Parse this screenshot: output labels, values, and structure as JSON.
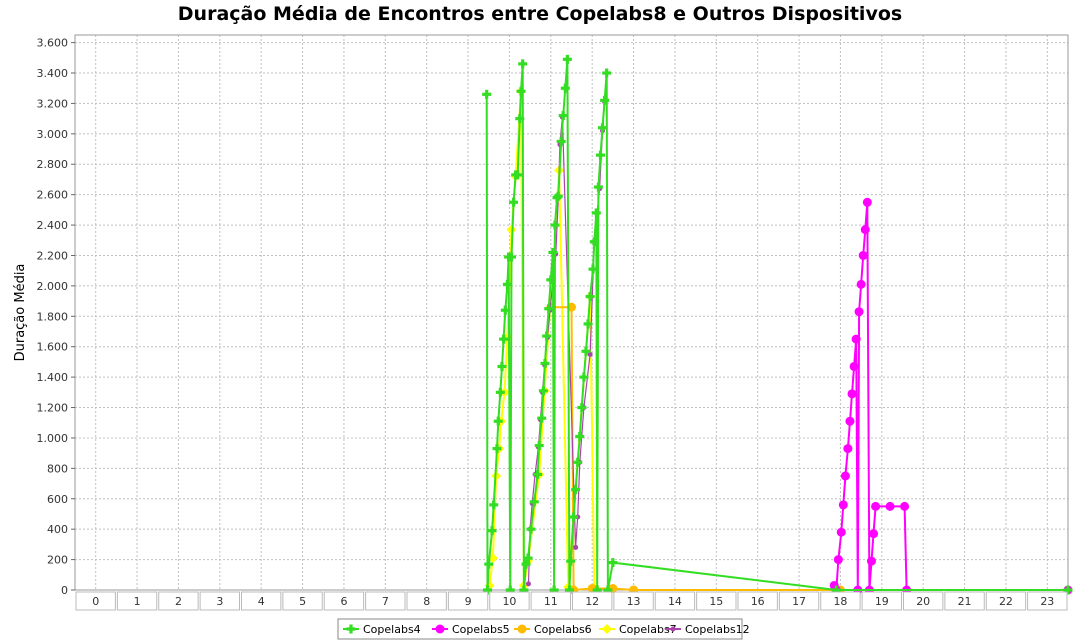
{
  "chart_data": {
    "type": "line",
    "title": "Duração Média de Encontros entre Copelabs8 e Outros Dispositivos",
    "xlabel": "",
    "ylabel": "Duração Média",
    "categories": [
      "0",
      "1",
      "2",
      "3",
      "4",
      "5",
      "6",
      "7",
      "8",
      "9",
      "10",
      "11",
      "12",
      "13",
      "14",
      "15",
      "16",
      "17",
      "18",
      "19",
      "20",
      "21",
      "22",
      "23"
    ],
    "xlim": [
      -0.5,
      23.5
    ],
    "ylim": [
      0,
      3650
    ],
    "y_ticks": [
      0,
      200,
      400,
      600,
      800,
      1000,
      1200,
      1400,
      1600,
      1800,
      2000,
      2200,
      2400,
      2600,
      2800,
      3000,
      3200,
      3400,
      3600
    ],
    "y_tick_labels": [
      "0",
      "200",
      "400",
      "600",
      "800",
      "1.000",
      "1.200",
      "1.400",
      "1.600",
      "1.800",
      "2.000",
      "2.200",
      "2.400",
      "2.600",
      "2.800",
      "3.000",
      "3.200",
      "3.400",
      "3.600"
    ],
    "grid": true,
    "legend_position": "bottom",
    "series": [
      {
        "name": "Copelabs4",
        "color": "#33dd22",
        "marker": "cross",
        "points": [
          [
            9.45,
            3260
          ],
          [
            9.47,
            0
          ],
          [
            9.5,
            170
          ],
          [
            9.58,
            390
          ],
          [
            9.62,
            560
          ],
          [
            9.7,
            930
          ],
          [
            9.73,
            1110
          ],
          [
            9.78,
            1300
          ],
          [
            9.82,
            1470
          ],
          [
            9.86,
            1650
          ],
          [
            9.9,
            1840
          ],
          [
            9.95,
            2010
          ],
          [
            9.98,
            2190
          ],
          [
            10.02,
            0
          ],
          [
            10.05,
            2190
          ],
          [
            10.1,
            2550
          ],
          [
            10.15,
            2730
          ],
          [
            10.2,
            2730
          ],
          [
            10.25,
            3100
          ],
          [
            10.28,
            3280
          ],
          [
            10.32,
            3460
          ],
          [
            10.35,
            0
          ],
          [
            10.4,
            170
          ],
          [
            10.45,
            210
          ],
          [
            10.52,
            400
          ],
          [
            10.6,
            580
          ],
          [
            10.68,
            760
          ],
          [
            10.72,
            950
          ],
          [
            10.78,
            1130
          ],
          [
            10.82,
            1310
          ],
          [
            10.86,
            1490
          ],
          [
            10.9,
            1670
          ],
          [
            10.95,
            1850
          ],
          [
            11.0,
            2040
          ],
          [
            11.05,
            2220
          ],
          [
            11.08,
            0
          ],
          [
            11.1,
            2400
          ],
          [
            11.15,
            2580
          ],
          [
            11.18,
            2590
          ],
          [
            11.25,
            2950
          ],
          [
            11.3,
            3120
          ],
          [
            11.35,
            3300
          ],
          [
            11.4,
            3490
          ],
          [
            11.45,
            0
          ],
          [
            11.48,
            190
          ],
          [
            11.55,
            480
          ],
          [
            11.6,
            660
          ],
          [
            11.65,
            840
          ],
          [
            11.7,
            1010
          ],
          [
            11.75,
            1200
          ],
          [
            11.8,
            1400
          ],
          [
            11.85,
            1570
          ],
          [
            11.9,
            1750
          ],
          [
            11.95,
            1930
          ],
          [
            12.02,
            2110
          ],
          [
            12.05,
            2290
          ],
          [
            12.1,
            2480
          ],
          [
            12.12,
            0
          ],
          [
            12.15,
            2650
          ],
          [
            12.2,
            2860
          ],
          [
            12.25,
            3040
          ],
          [
            12.3,
            3220
          ],
          [
            12.35,
            3400
          ],
          [
            12.38,
            0
          ],
          [
            12.5,
            180
          ],
          [
            17.9,
            0
          ],
          [
            23.5,
            0
          ]
        ]
      },
      {
        "name": "Copelabs5",
        "color": "#ff00ff",
        "marker": "circle",
        "points": [
          [
            17.85,
            30
          ],
          [
            17.9,
            0
          ],
          [
            17.95,
            200
          ],
          [
            18.02,
            380
          ],
          [
            18.07,
            560
          ],
          [
            18.12,
            750
          ],
          [
            18.18,
            930
          ],
          [
            18.23,
            1110
          ],
          [
            18.28,
            1290
          ],
          [
            18.33,
            1470
          ],
          [
            18.38,
            1650
          ],
          [
            18.42,
            0
          ],
          [
            18.45,
            1830
          ],
          [
            18.5,
            2010
          ],
          [
            18.55,
            2200
          ],
          [
            18.6,
            2370
          ],
          [
            18.65,
            2550
          ],
          [
            18.7,
            0
          ],
          [
            18.75,
            190
          ],
          [
            18.8,
            370
          ],
          [
            18.85,
            550
          ],
          [
            19.2,
            550
          ],
          [
            19.55,
            550
          ],
          [
            19.6,
            0
          ],
          [
            23.5,
            0
          ]
        ]
      },
      {
        "name": "Copelabs6",
        "color": "#ffbb00",
        "marker": "circle",
        "points": [
          [
            11.0,
            1860
          ],
          [
            11.5,
            1860
          ],
          [
            11.55,
            0
          ],
          [
            12.0,
            10
          ],
          [
            12.5,
            10
          ],
          [
            13.0,
            0
          ],
          [
            18.0,
            0
          ],
          [
            23.5,
            0
          ]
        ]
      },
      {
        "name": "Copelabs7",
        "color": "#ffff00",
        "marker": "diamond",
        "points": [
          [
            9.52,
            30
          ],
          [
            9.6,
            210
          ],
          [
            9.68,
            750
          ],
          [
            9.75,
            930
          ],
          [
            9.8,
            1110
          ],
          [
            9.88,
            1300
          ],
          [
            9.95,
            1660
          ],
          [
            10.05,
            2370
          ],
          [
            10.15,
            2720
          ],
          [
            10.28,
            3280
          ],
          [
            10.35,
            30
          ],
          [
            10.45,
            190
          ],
          [
            10.72,
            760
          ],
          [
            10.85,
            1310
          ],
          [
            11.2,
            2760
          ],
          [
            11.42,
            20
          ],
          [
            11.95,
            1930
          ],
          [
            12.05,
            20
          ]
        ]
      },
      {
        "name": "Copelabs12",
        "color": "#aa44aa",
        "marker": "small-circle",
        "points": [
          [
            10.46,
            40
          ],
          [
            10.5,
            400
          ],
          [
            10.55,
            570
          ],
          [
            10.62,
            760
          ],
          [
            10.7,
            940
          ],
          [
            10.75,
            1120
          ],
          [
            10.8,
            1300
          ],
          [
            10.85,
            1480
          ],
          [
            10.92,
            1660
          ],
          [
            10.98,
            1840
          ],
          [
            11.05,
            2030
          ],
          [
            11.12,
            2210
          ],
          [
            11.18,
            2580
          ],
          [
            11.22,
            2930
          ],
          [
            11.28,
            3110
          ],
          [
            11.6,
            280
          ],
          [
            11.65,
            480
          ],
          [
            11.7,
            840
          ],
          [
            11.8,
            1200
          ],
          [
            11.95,
            1550
          ],
          [
            12.05,
            2290
          ],
          [
            12.18,
            2640
          ],
          [
            12.25,
            3020
          ],
          [
            12.3,
            3210
          ]
        ]
      }
    ]
  }
}
